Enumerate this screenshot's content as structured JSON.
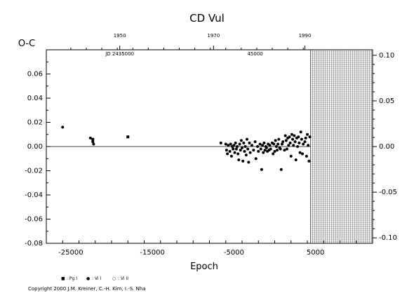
{
  "chart_data": {
    "type": "scatter",
    "title": "CD Vul",
    "xlabel": "Epoch",
    "ylabel": "O-C",
    "xlim": [
      -28000,
      12000
    ],
    "ylim": [
      -0.08,
      0.08
    ],
    "right_ylim": [
      -0.106,
      0.106
    ],
    "x_ticks": [
      "-25000",
      "-15000",
      "-5000",
      "5000"
    ],
    "x_tick_values": [
      -25000,
      -15000,
      -5000,
      5000
    ],
    "y_ticks": [
      "-0.08",
      "-0.06",
      "-0.04",
      "-0.02",
      "0.00",
      "0.02",
      "0.04",
      "0.06"
    ],
    "y_tick_values": [
      -0.08,
      -0.06,
      -0.04,
      -0.02,
      0.0,
      0.02,
      0.04,
      0.06
    ],
    "right_y_ticks": [
      "-0.10",
      "-0.05",
      "0.00",
      "0.05",
      "0.10"
    ],
    "right_y_tick_values": [
      -0.1,
      -0.05,
      0.0,
      0.05,
      0.1
    ],
    "top_year_ticks": [
      "1950",
      "1970",
      "1990"
    ],
    "top_year_epochs": [
      -19000,
      -7500,
      3700
    ],
    "top_jd_labels": [
      {
        "text": "JD 2435000",
        "epoch": -19000
      },
      {
        "text": "45000",
        "epoch": -2400
      }
    ],
    "reference_line": 0.0,
    "future_region_start_epoch": 4400,
    "legend": [
      {
        "symbol": "■",
        "label": ": Pg I"
      },
      {
        "symbol": "●",
        "label": ": Vi I"
      },
      {
        "symbol": "○",
        "label": ": Vi II"
      }
    ],
    "copyright": "Copyright 2000 J.M. Kreiner, C.-H. Kim, I.-S. Nha",
    "series": [
      {
        "marker": "square",
        "points": [
          [
            -22300,
            0.006
          ],
          [
            -18000,
            0.008
          ]
        ]
      },
      {
        "marker": "dot",
        "points": [
          [
            -26000,
            0.016
          ],
          [
            -22600,
            0.007
          ],
          [
            -22300,
            0.004
          ],
          [
            -22200,
            0.002
          ],
          [
            -6600,
            0.003
          ],
          [
            -6000,
            0.002
          ],
          [
            -5900,
            -0.003
          ],
          [
            -5800,
            -0.006
          ],
          [
            -5700,
            0.001
          ],
          [
            -5500,
            -0.004
          ],
          [
            -5400,
            0.002
          ],
          [
            -5300,
            -0.008
          ],
          [
            -5200,
            0.0
          ],
          [
            -5100,
            -0.002
          ],
          [
            -5000,
            0.001
          ],
          [
            -4900,
            -0.005
          ],
          [
            -4800,
            0.003
          ],
          [
            -4700,
            -0.002
          ],
          [
            -4600,
            0.0
          ],
          [
            -4500,
            -0.006
          ],
          [
            -4400,
            -0.011
          ],
          [
            -4300,
            0.002
          ],
          [
            -4200,
            -0.003
          ],
          [
            -4100,
            0.005
          ],
          [
            -4000,
            -0.001
          ],
          [
            -3900,
            -0.012
          ],
          [
            -3800,
            0.003
          ],
          [
            -3700,
            -0.004
          ],
          [
            -3600,
            0.0
          ],
          [
            -3500,
            -0.007
          ],
          [
            -3400,
            0.006
          ],
          [
            -3300,
            -0.002
          ],
          [
            -3200,
            -0.013
          ],
          [
            -3100,
            0.003
          ],
          [
            -3000,
            -0.005
          ],
          [
            -2800,
            0.001
          ],
          [
            -2600,
            -0.003
          ],
          [
            -2400,
            0.004
          ],
          [
            -2300,
            -0.01
          ],
          [
            -2100,
            0.0
          ],
          [
            -2000,
            -0.004
          ],
          [
            -1800,
            0.002
          ],
          [
            -1700,
            -0.002
          ],
          [
            -1600,
            -0.019
          ],
          [
            -1500,
            0.001
          ],
          [
            -1400,
            -0.005
          ],
          [
            -1300,
            0.003
          ],
          [
            -1200,
            -0.003
          ],
          [
            -1100,
            0.0
          ],
          [
            -1000,
            -0.001
          ],
          [
            -900,
            -0.004
          ],
          [
            -800,
            0.002
          ],
          [
            -700,
            -0.003
          ],
          [
            -600,
            0.001
          ],
          [
            -500,
            -0.002
          ],
          [
            -300,
            0.003
          ],
          [
            -200,
            -0.006
          ],
          [
            -100,
            0.002
          ],
          [
            0,
            -0.004
          ],
          [
            100,
            0.005
          ],
          [
            200,
            0.0
          ],
          [
            300,
            -0.003
          ],
          [
            400,
            0.002
          ],
          [
            500,
            0.006
          ],
          [
            600,
            -0.001
          ],
          [
            700,
            -0.002
          ],
          [
            800,
            -0.019
          ],
          [
            900,
            0.002
          ],
          [
            1000,
            0.004
          ],
          [
            1200,
            -0.003
          ],
          [
            1300,
            0.009
          ],
          [
            1400,
            0.005
          ],
          [
            1500,
            -0.002
          ],
          [
            1600,
            0.007
          ],
          [
            1700,
            0.001
          ],
          [
            1800,
            0.008
          ],
          [
            1900,
            0.003
          ],
          [
            2000,
            -0.008
          ],
          [
            2100,
            0.01
          ],
          [
            2200,
            0.006
          ],
          [
            2300,
            0.001
          ],
          [
            2400,
            0.009
          ],
          [
            2500,
            0.004
          ],
          [
            2600,
            -0.011
          ],
          [
            2700,
            0.007
          ],
          [
            2800,
            0.0
          ],
          [
            2900,
            0.008
          ],
          [
            3000,
            0.003
          ],
          [
            3100,
            -0.005
          ],
          [
            3200,
            0.012
          ],
          [
            3300,
            0.006
          ],
          [
            3400,
            -0.006
          ],
          [
            3500,
            0.002
          ],
          [
            3700,
            0.004
          ],
          [
            3800,
            0.007
          ],
          [
            3900,
            -0.008
          ],
          [
            4000,
            0.01
          ],
          [
            4100,
            0.001
          ],
          [
            4200,
            -0.012
          ],
          [
            4300,
            0.008
          ]
        ]
      }
    ]
  }
}
